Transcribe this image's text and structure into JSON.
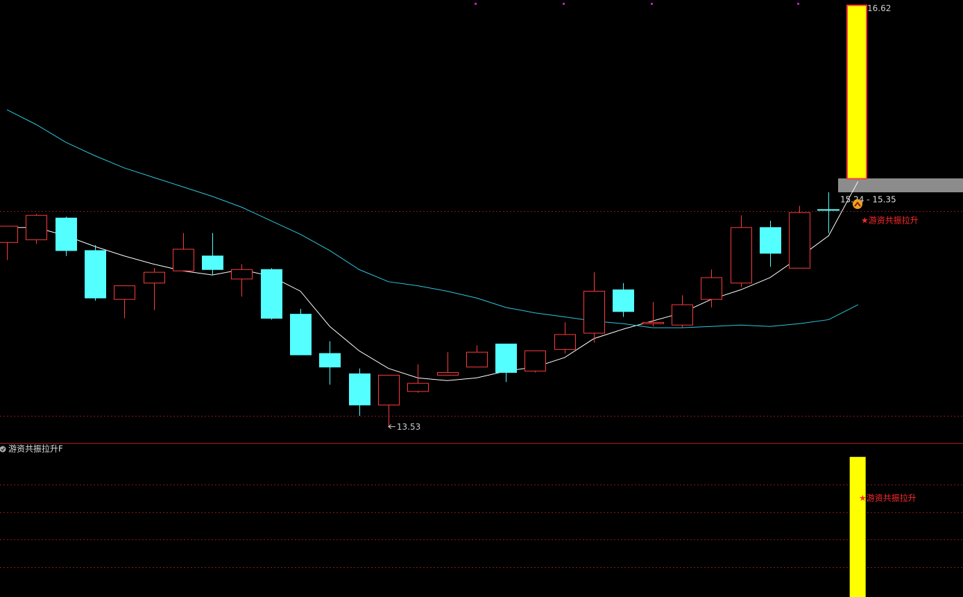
{
  "chart_data": {
    "type": "candlestick",
    "ylim": [
      13.41,
      16.68
    ],
    "up_color": "#ff3c3c",
    "down_color": "#54ffff",
    "ohlc": {
      "open": [
        14.89,
        14.91,
        15.07,
        14.83,
        14.47,
        14.59,
        14.68,
        14.79,
        14.62,
        14.69,
        14.36,
        14.07,
        13.92,
        13.69,
        13.79,
        13.91,
        13.97,
        14.14,
        13.94,
        14.1,
        14.22,
        14.54,
        14.29,
        14.28,
        14.47,
        14.59,
        15.0,
        14.7,
        15.13,
        null
      ],
      "high": [
        15.01,
        15.1,
        15.08,
        14.87,
        14.57,
        14.7,
        14.96,
        14.96,
        14.73,
        14.7,
        14.4,
        14.16,
        13.96,
        13.91,
        13.99,
        14.08,
        14.13,
        14.14,
        14.09,
        14.3,
        14.67,
        14.59,
        14.45,
        14.5,
        14.69,
        15.09,
        15.05,
        15.16,
        15.26,
        null
      ],
      "low": [
        14.76,
        14.88,
        14.79,
        14.46,
        14.33,
        14.39,
        14.68,
        14.65,
        14.49,
        14.32,
        14.06,
        13.84,
        13.61,
        13.53,
        13.78,
        13.91,
        13.97,
        13.86,
        13.93,
        14.07,
        14.15,
        14.34,
        14.27,
        14.26,
        14.41,
        14.56,
        14.71,
        14.7,
        14.96,
        null
      ],
      "close": [
        15.01,
        15.09,
        14.83,
        14.48,
        14.57,
        14.67,
        14.84,
        14.69,
        14.69,
        14.33,
        14.06,
        13.97,
        13.69,
        13.91,
        13.85,
        13.93,
        14.08,
        13.93,
        14.09,
        14.21,
        14.53,
        14.38,
        14.3,
        14.43,
        14.63,
        15.0,
        14.81,
        15.11,
        15.13,
        null
      ]
    },
    "moving_averages": [
      {
        "color": "#ffffff",
        "values": [
          15.0,
          15.0,
          14.94,
          14.86,
          14.79,
          14.73,
          14.68,
          14.65,
          14.69,
          14.64,
          14.53,
          14.27,
          14.09,
          13.96,
          13.89,
          13.87,
          13.89,
          13.94,
          13.97,
          14.04,
          14.18,
          14.25,
          14.31,
          14.37,
          14.47,
          14.54,
          14.63,
          14.78,
          14.94,
          15.34
        ]
      },
      {
        "color": "#2ec8e0",
        "values": [
          15.87,
          15.76,
          15.63,
          15.53,
          15.44,
          15.37,
          15.3,
          15.23,
          15.15,
          15.05,
          14.95,
          14.83,
          14.69,
          14.6,
          14.57,
          14.53,
          14.48,
          14.41,
          14.37,
          14.34,
          14.31,
          14.29,
          14.26,
          14.26,
          14.27,
          14.28,
          14.27,
          14.29,
          14.32,
          14.43
        ]
      }
    ],
    "ref_lines": [
      15.12,
      13.61
    ],
    "signal_bar": {
      "low": 15.36,
      "high": 16.62,
      "color": "#ffff00"
    },
    "range_label": "15.24 - 15.35",
    "signal_label": "★游资共振拉升",
    "indicator": {
      "title": "游资共振拉升F",
      "ylim": [
        0,
        1.1
      ],
      "values": [
        null,
        null,
        null,
        null,
        null,
        null,
        null,
        null,
        null,
        null,
        null,
        null,
        null,
        null,
        null,
        null,
        null,
        null,
        null,
        null,
        null,
        null,
        null,
        null,
        null,
        null,
        null,
        null,
        null,
        1
      ],
      "color": "#ffff00",
      "signal_label": "★游资共振拉升"
    }
  }
}
